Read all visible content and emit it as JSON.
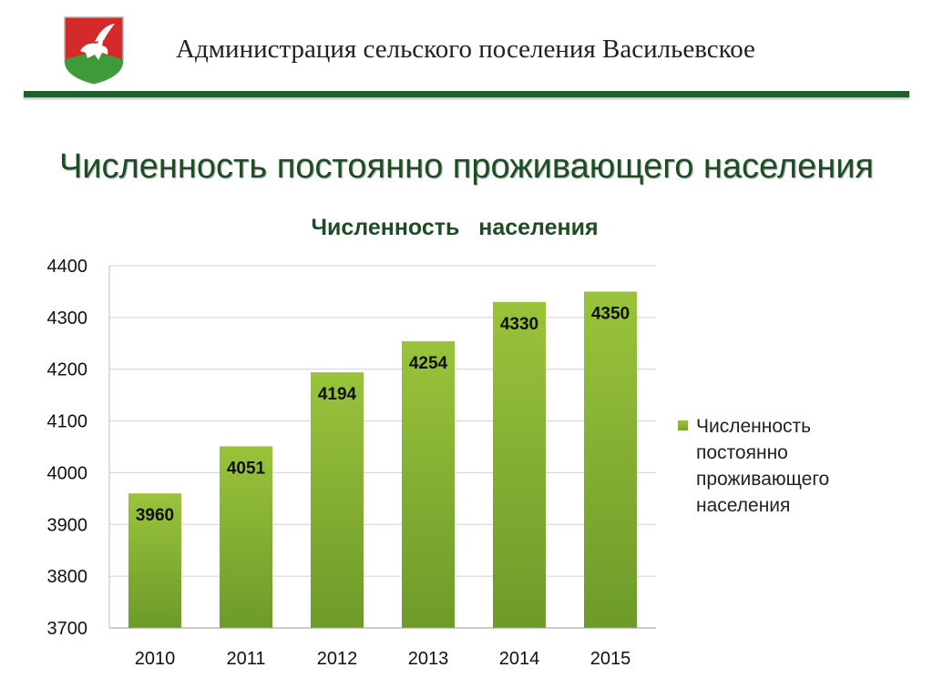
{
  "header": {
    "title": "Администрация сельского поселения Васильевское",
    "emblem_icon": "coat-of-arms-pegasus-icon"
  },
  "slide_title": "Численность постоянно проживающего населения",
  "colors": {
    "rule": "#1f5f2e",
    "title": "#1e4d25",
    "bar_top": "#9ac33b",
    "bar_bottom": "#6e9a2a",
    "grid": "#d0d0d0"
  },
  "chart_data": {
    "type": "bar",
    "title": "Численность   населения",
    "categories": [
      "2010",
      "2011",
      "2012",
      "2013",
      "2014",
      "2015"
    ],
    "series": [
      {
        "name": "Численность постоянно проживающего населения",
        "values": [
          3960,
          4051,
          4194,
          4254,
          4330,
          4350
        ]
      }
    ],
    "data_labels": [
      "3960",
      "4051",
      "4194",
      "4254",
      "4330",
      "4350"
    ],
    "y_ticks": [
      3700,
      3800,
      3900,
      4000,
      4100,
      4200,
      4300,
      4400
    ],
    "ylim": [
      3700,
      4400
    ],
    "grid": true,
    "legend_position": "right"
  }
}
